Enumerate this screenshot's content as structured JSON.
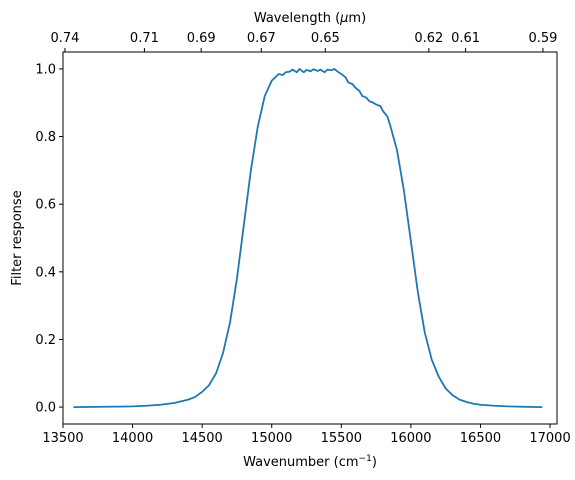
{
  "chart_data": {
    "type": "line",
    "title": "",
    "xlabel": "Wavenumber (cm",
    "xlabel_superscript": "−1",
    "xlabel_suffix": ")",
    "ylabel": "Filter response",
    "secondary_xlabel_pre": "Wavelength (",
    "secondary_xlabel_mu": "μ",
    "secondary_xlabel_post": "m)",
    "xlim": [
      13500,
      17050
    ],
    "ylim": [
      -0.05,
      1.05
    ],
    "grid": false,
    "xticks": [
      13500,
      14000,
      14500,
      15000,
      15500,
      16000,
      16500,
      17000
    ],
    "yticks": [
      0.0,
      0.2,
      0.4,
      0.6,
      0.8,
      1.0
    ],
    "xtick_labels": [
      "13500",
      "14000",
      "14500",
      "15000",
      "15500",
      "16000",
      "16500",
      "17000"
    ],
    "ytick_labels": [
      "0.0",
      "0.2",
      "0.4",
      "0.6",
      "0.8",
      "1.0"
    ],
    "secondary_xticks": [
      {
        "label": "0.74",
        "wavenumber": 13514
      },
      {
        "label": "0.71",
        "wavenumber": 14085
      },
      {
        "label": "0.69",
        "wavenumber": 14493
      },
      {
        "label": "0.67",
        "wavenumber": 14925
      },
      {
        "label": "0.65",
        "wavenumber": 15385
      },
      {
        "label": "0.62",
        "wavenumber": 16129
      },
      {
        "label": "0.61",
        "wavenumber": 16393
      },
      {
        "label": "0.59",
        "wavenumber": 16949
      }
    ],
    "series": [
      {
        "color": "#1f77b4",
        "x": [
          13580,
          13800,
          14000,
          14100,
          14200,
          14300,
          14400,
          14450,
          14500,
          14550,
          14600,
          14650,
          14700,
          14750,
          14800,
          14850,
          14900,
          14950,
          15000,
          15050,
          15080,
          15100,
          15130,
          15150,
          15180,
          15200,
          15230,
          15250,
          15280,
          15300,
          15330,
          15350,
          15380,
          15400,
          15430,
          15450,
          15480,
          15500,
          15530,
          15550,
          15580,
          15600,
          15630,
          15650,
          15680,
          15700,
          15730,
          15750,
          15780,
          15800,
          15830,
          15850,
          15900,
          15950,
          16000,
          16050,
          16100,
          16150,
          16200,
          16250,
          16300,
          16350,
          16400,
          16450,
          16500,
          16600,
          16700,
          16800,
          16940
        ],
        "y": [
          0.0,
          0.001,
          0.002,
          0.004,
          0.007,
          0.012,
          0.022,
          0.03,
          0.045,
          0.065,
          0.1,
          0.16,
          0.25,
          0.38,
          0.54,
          0.7,
          0.83,
          0.92,
          0.965,
          0.985,
          0.982,
          0.99,
          0.992,
          0.998,
          0.99,
          1.0,
          0.99,
          0.997,
          0.993,
          0.999,
          0.994,
          0.998,
          0.99,
          0.998,
          0.996,
          1.0,
          0.99,
          0.985,
          0.975,
          0.96,
          0.955,
          0.945,
          0.935,
          0.92,
          0.915,
          0.905,
          0.9,
          0.895,
          0.89,
          0.875,
          0.86,
          0.835,
          0.76,
          0.64,
          0.49,
          0.34,
          0.22,
          0.14,
          0.09,
          0.055,
          0.035,
          0.022,
          0.015,
          0.01,
          0.007,
          0.004,
          0.002,
          0.001,
          0.0
        ]
      }
    ]
  }
}
